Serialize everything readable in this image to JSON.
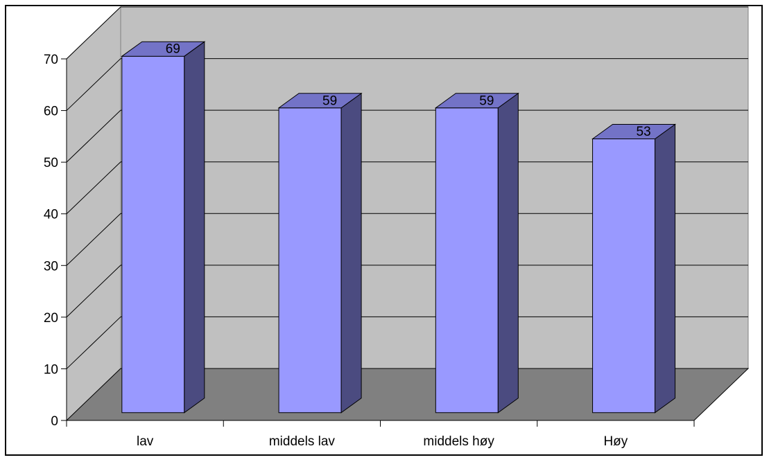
{
  "chart_data": {
    "type": "bar",
    "categories": [
      "lav",
      "middels lav",
      "middels høy",
      "Høy"
    ],
    "values": [
      69,
      59,
      59,
      53
    ],
    "data_labels": [
      "69",
      "59",
      "59",
      "53"
    ],
    "yticks": [
      0,
      10,
      20,
      30,
      40,
      50,
      60,
      70
    ],
    "ylim": [
      0,
      70
    ],
    "title": "",
    "xlabel": "",
    "ylabel": "",
    "grid": true,
    "three_d": true,
    "colors": {
      "bar_front": "#9999ff",
      "bar_side": "#4b4b80",
      "bar_top": "#7373c7",
      "back_wall": "#c0c0c0",
      "side_wall": "#c0c0c0",
      "floor": "#808080"
    }
  }
}
